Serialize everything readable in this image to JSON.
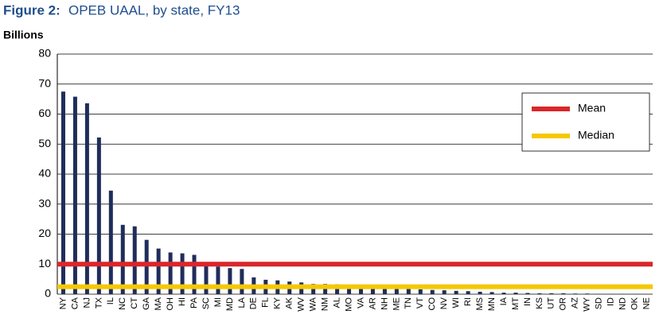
{
  "chart_data": {
    "type": "bar",
    "title_prefix": "Figure 2:",
    "title": "OPEB UAAL, by state, FY13",
    "y_label": "Billions",
    "categories": [
      "NY",
      "CA",
      "NJ",
      "TX",
      "IL",
      "NC",
      "CT",
      "GA",
      "MA",
      "OH",
      "HI",
      "PA",
      "SC",
      "MI",
      "MD",
      "LA",
      "DE",
      "FL",
      "KY",
      "AK",
      "WV",
      "WA",
      "NM",
      "AL",
      "MO",
      "VA",
      "AR",
      "NH",
      "ME",
      "TN",
      "VT",
      "CO",
      "NV",
      "WI",
      "RI",
      "MS",
      "MN",
      "IA",
      "MT",
      "IN",
      "KS",
      "UT",
      "OR",
      "AZ",
      "WY",
      "SD",
      "ID",
      "ND",
      "OK",
      "NE"
    ],
    "values": [
      67.5,
      65.8,
      63.6,
      52.2,
      34.5,
      23.1,
      22.6,
      18.1,
      15.2,
      13.9,
      13.6,
      13.1,
      9.5,
      9.2,
      8.7,
      8.4,
      5.6,
      4.8,
      4.6,
      4.2,
      3.9,
      3.4,
      3.4,
      3.3,
      2.8,
      2.4,
      2.1,
      2.0,
      1.9,
      1.8,
      1.6,
      1.4,
      1.3,
      1.1,
      1.0,
      0.8,
      0.7,
      0.5,
      0.5,
      0.4,
      0.3,
      0.3,
      0.3,
      0.2,
      0.2,
      0.1,
      0.1,
      0.1,
      0.1,
      0
    ],
    "color": "#1f2d5a",
    "reference_lines": [
      {
        "name": "Mean",
        "value": 10,
        "color": "#d9262b"
      },
      {
        "name": "Median",
        "value": 2.5,
        "color": "#f5c800"
      }
    ],
    "ylim": [
      0,
      80
    ],
    "yticks": [
      0,
      10,
      20,
      30,
      40,
      50,
      60,
      70,
      80
    ],
    "grid": true
  }
}
